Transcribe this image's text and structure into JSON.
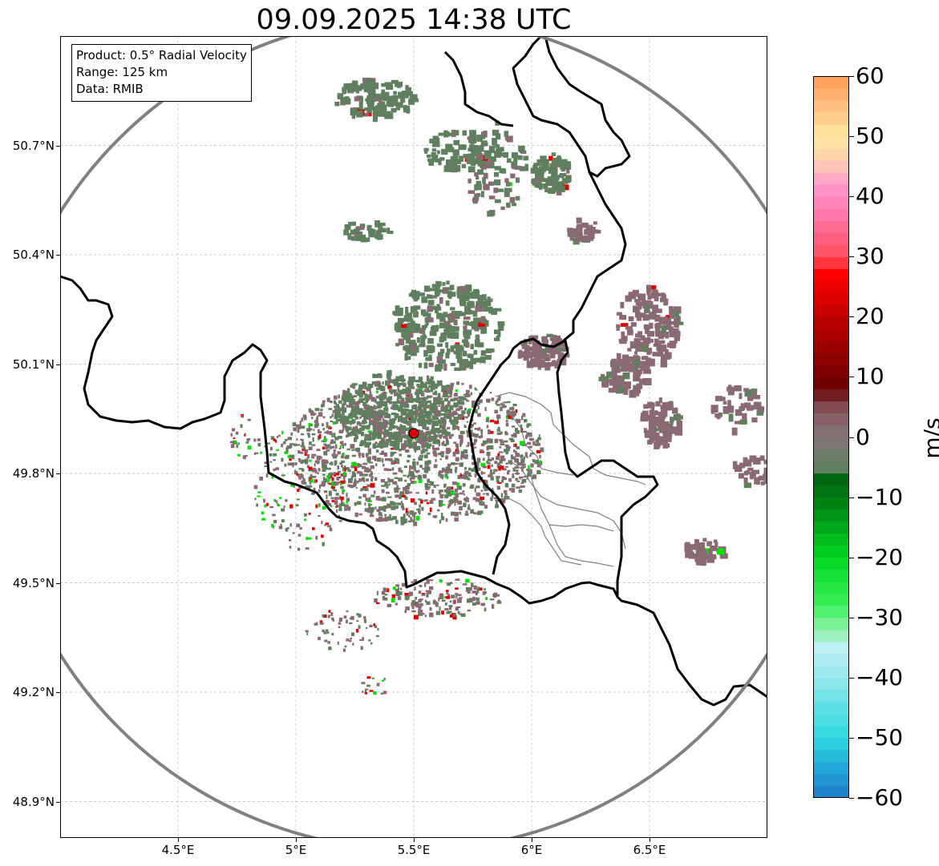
{
  "title": "09.09.2025 14:38 UTC",
  "info": {
    "product": "Product: 0.5° Radial Velocity",
    "range": "Range: 125 km",
    "source": "Data: RMIB"
  },
  "map": {
    "lon_range": [
      4.0,
      7.0
    ],
    "lat_range": [
      48.8,
      51.0
    ],
    "radar_site": {
      "lon": 5.5,
      "lat": 49.91
    },
    "range_ring_km": 125,
    "y_ticks": [
      {
        "lat": 50.7,
        "label": "50.7°N"
      },
      {
        "lat": 50.4,
        "label": "50.4°N"
      },
      {
        "lat": 50.1,
        "label": "50.1°N"
      },
      {
        "lat": 49.8,
        "label": "49.8°N"
      },
      {
        "lat": 49.5,
        "label": "49.5°N"
      },
      {
        "lat": 49.2,
        "label": "49.2°N"
      },
      {
        "lat": 48.9,
        "label": "48.9°N"
      }
    ],
    "x_ticks": [
      {
        "lon": 4.5,
        "label": "4.5°E"
      },
      {
        "lon": 5.0,
        "label": "5°E"
      },
      {
        "lon": 5.5,
        "label": "5.5°E"
      },
      {
        "lon": 6.0,
        "label": "6°E"
      },
      {
        "lon": 6.5,
        "label": "6.5°E"
      }
    ],
    "colors": {
      "approaching_strong": "#00e000",
      "approaching_weak": "#5f7f5f",
      "receding_weak": "#8a6a72",
      "receding_strong": "#e00000",
      "border": "#000000",
      "subdivision": "#808080",
      "range_ring": "#808080",
      "radar_marker": "#e00000"
    }
  },
  "colorbar": {
    "label": "m/s",
    "min": -60,
    "max": 60,
    "ticks": [
      {
        "value": 60,
        "label": "60"
      },
      {
        "value": 50,
        "label": "50"
      },
      {
        "value": 40,
        "label": "40"
      },
      {
        "value": 30,
        "label": "30"
      },
      {
        "value": 20,
        "label": "20"
      },
      {
        "value": 10,
        "label": "10"
      },
      {
        "value": 0,
        "label": "0"
      },
      {
        "value": -10,
        "label": "−10"
      },
      {
        "value": -20,
        "label": "−20"
      },
      {
        "value": -30,
        "label": "−30"
      },
      {
        "value": -40,
        "label": "−40"
      },
      {
        "value": -50,
        "label": "−50"
      },
      {
        "value": -60,
        "label": "−60"
      }
    ],
    "stops": [
      {
        "value": -60,
        "color": "#1f78c8"
      },
      {
        "value": -55,
        "color": "#22a8d8"
      },
      {
        "value": -50,
        "color": "#2ed8e0"
      },
      {
        "value": -45,
        "color": "#5ee0e4"
      },
      {
        "value": -40,
        "color": "#96e8ec"
      },
      {
        "value": -35,
        "color": "#bcf0f2"
      },
      {
        "value": -32,
        "color": "#8ef0a8"
      },
      {
        "value": -28,
        "color": "#3cf05a"
      },
      {
        "value": -20,
        "color": "#00d820"
      },
      {
        "value": -12,
        "color": "#008a14"
      },
      {
        "value": -6,
        "color": "#005e10"
      },
      {
        "value": -5,
        "color": "#5f7f5f"
      },
      {
        "value": 0,
        "color": "#827678"
      },
      {
        "value": 4,
        "color": "#8a5a62"
      },
      {
        "value": 6,
        "color": "#7a3a42"
      },
      {
        "value": 8,
        "color": "#6a0000"
      },
      {
        "value": 18,
        "color": "#b00000"
      },
      {
        "value": 27,
        "color": "#ff0000"
      },
      {
        "value": 30,
        "color": "#ff5060"
      },
      {
        "value": 36,
        "color": "#ff70a0"
      },
      {
        "value": 42,
        "color": "#ff9ad0"
      },
      {
        "value": 46,
        "color": "#ffd0b0"
      },
      {
        "value": 50,
        "color": "#ffe8a0"
      },
      {
        "value": 55,
        "color": "#ffc080"
      },
      {
        "value": 60,
        "color": "#ff9a55"
      }
    ]
  }
}
